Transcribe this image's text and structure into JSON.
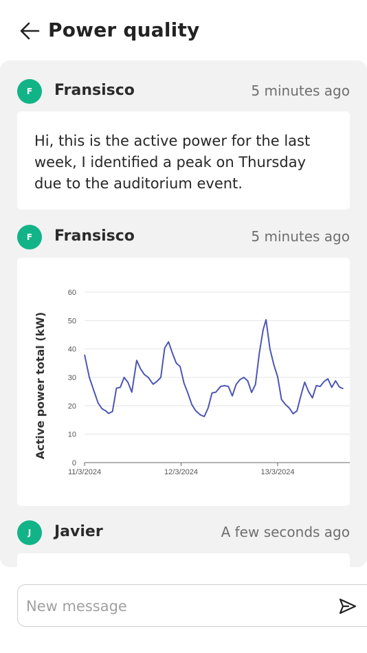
{
  "header": {
    "title": "Power quality",
    "back_icon": "arrow-left-icon"
  },
  "messages": [
    {
      "initial": "F",
      "author": "Fransisco",
      "time": "5 minutes ago",
      "text": "Hi, this is the active power for the last week, I identified a peak on Thursday due to the auditorium event."
    },
    {
      "initial": "F",
      "author": "Fransisco",
      "time": "5 minutes ago"
    },
    {
      "initial": "J",
      "author": "Javier",
      "time": "A few seconds ago"
    }
  ],
  "colors": {
    "avatar": "#12b487",
    "line": "#4c56b3",
    "thread_bg": "#f2f2f2"
  },
  "composer": {
    "placeholder": "New message",
    "send_icon": "send-icon"
  },
  "chart_data": {
    "type": "line",
    "ylabel": "Active power total (kW)",
    "xlabel": "",
    "ylim": [
      0,
      60
    ],
    "yticks": [
      0,
      10,
      20,
      30,
      40,
      50,
      60
    ],
    "x_tick_labels": [
      "11/3/2024",
      "12/3/2024",
      "13/3/2024"
    ],
    "x_tick_positions_days": [
      0,
      1,
      2
    ],
    "grid": "horizontal",
    "series": [
      {
        "values": [
          [
            0.0,
            38
          ],
          [
            0.05,
            30
          ],
          [
            0.1,
            25
          ],
          [
            0.14,
            21
          ],
          [
            0.18,
            19
          ],
          [
            0.22,
            18.2
          ],
          [
            0.25,
            17.3
          ],
          [
            0.29,
            18
          ],
          [
            0.33,
            26.2
          ],
          [
            0.37,
            26.5
          ],
          [
            0.41,
            30
          ],
          [
            0.45,
            28.2
          ],
          [
            0.49,
            24.8
          ],
          [
            0.54,
            36
          ],
          [
            0.58,
            33
          ],
          [
            0.62,
            31
          ],
          [
            0.66,
            30
          ],
          [
            0.71,
            27.6
          ],
          [
            0.75,
            28.6
          ],
          [
            0.79,
            30
          ],
          [
            0.83,
            40.3
          ],
          [
            0.87,
            42.5
          ],
          [
            0.91,
            38.5
          ],
          [
            0.95,
            35
          ],
          [
            0.99,
            33.8
          ],
          [
            1.03,
            28
          ],
          [
            1.07,
            24.5
          ],
          [
            1.11,
            20.5
          ],
          [
            1.15,
            18.3
          ],
          [
            1.2,
            16.8
          ],
          [
            1.24,
            16.2
          ],
          [
            1.28,
            19.2
          ],
          [
            1.32,
            24.5
          ],
          [
            1.36,
            24.8
          ],
          [
            1.41,
            26.8
          ],
          [
            1.45,
            27.1
          ],
          [
            1.49,
            26.8
          ],
          [
            1.53,
            23.5
          ],
          [
            1.57,
            27.5
          ],
          [
            1.61,
            29.2
          ],
          [
            1.65,
            30
          ],
          [
            1.69,
            28.8
          ],
          [
            1.73,
            24.7
          ],
          [
            1.77,
            27.5
          ],
          [
            1.81,
            38.5
          ],
          [
            1.85,
            46.8
          ],
          [
            1.88,
            50.3
          ],
          [
            1.92,
            40
          ],
          [
            1.96,
            34.5
          ],
          [
            2.0,
            30.2
          ],
          [
            2.04,
            22.2
          ],
          [
            2.08,
            20.5
          ],
          [
            2.12,
            19.2
          ],
          [
            2.16,
            17.2
          ],
          [
            2.2,
            18.2
          ],
          [
            2.24,
            23.5
          ],
          [
            2.28,
            28.3
          ],
          [
            2.32,
            25
          ],
          [
            2.36,
            22.8
          ],
          [
            2.4,
            27.1
          ],
          [
            2.44,
            26.8
          ],
          [
            2.48,
            28.5
          ],
          [
            2.52,
            29.5
          ],
          [
            2.56,
            26.5
          ],
          [
            2.6,
            28.8
          ],
          [
            2.64,
            26.6
          ],
          [
            2.68,
            26
          ]
        ]
      }
    ]
  }
}
